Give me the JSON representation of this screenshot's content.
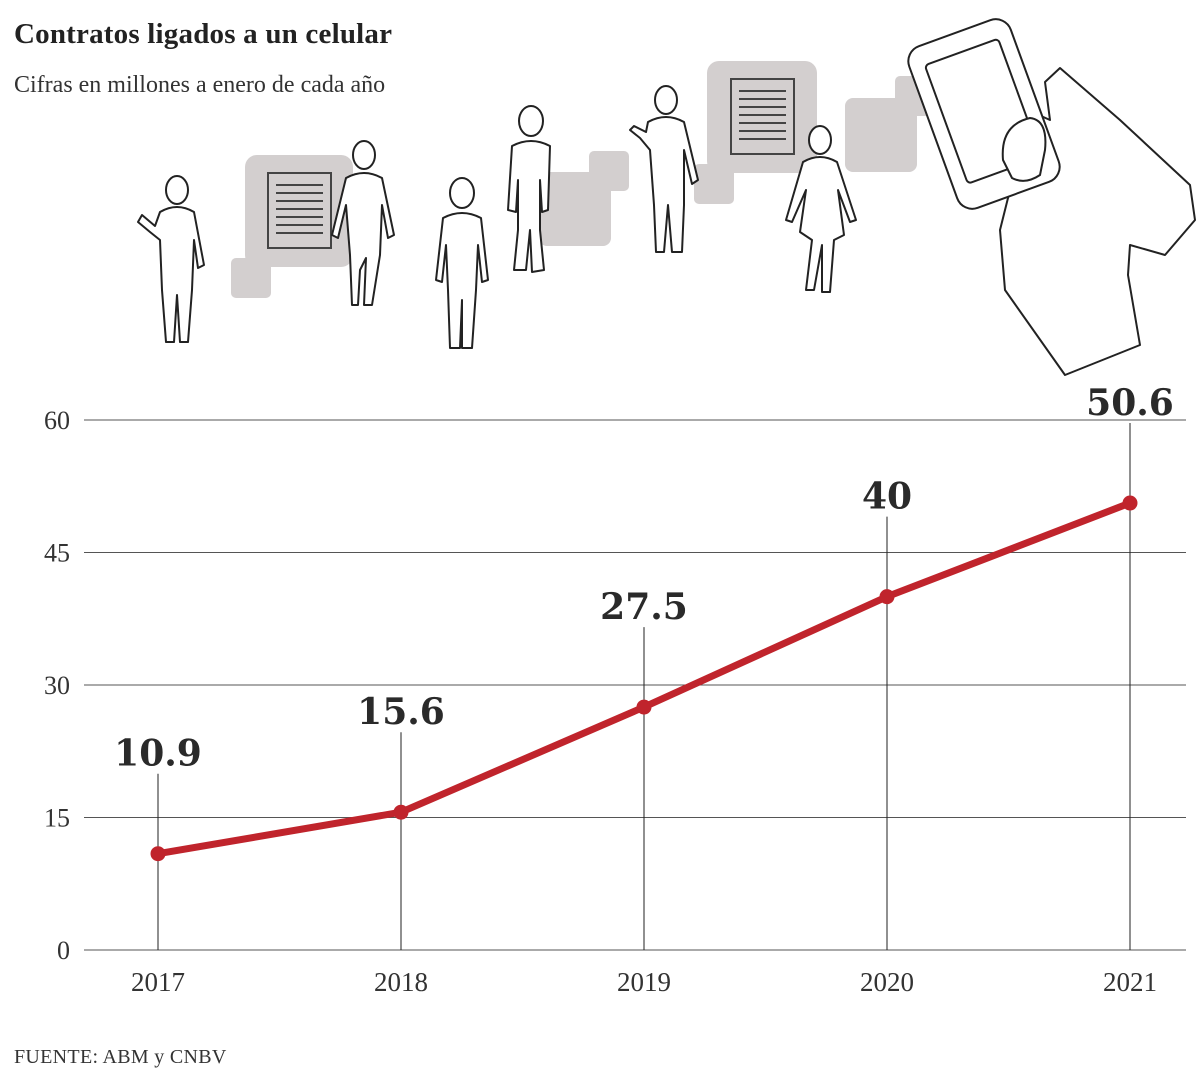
{
  "header": {
    "title": "Contratos ligados a un celular",
    "subtitle": "Cifras en millones a enero de cada año"
  },
  "footer": {
    "source": "FUENTE: ABM y CNBV"
  },
  "illustration": {
    "icons": [
      "person-silhouette-icon",
      "document-card-icon",
      "smartphone-hand-icon"
    ]
  },
  "colors": {
    "line": "#c0242c",
    "grid": "#555555",
    "card": "#d3cfcf"
  },
  "chart_data": {
    "type": "line",
    "title": "Contratos ligados a un celular",
    "subtitle": "Cifras en millones a enero de cada año",
    "categories": [
      "2017",
      "2018",
      "2019",
      "2020",
      "2021"
    ],
    "values": [
      10.9,
      15.6,
      27.5,
      40,
      50.6
    ],
    "value_labels": [
      "10.9",
      "15.6",
      "27.5",
      "40",
      "50.6"
    ],
    "y_ticks": [
      0,
      15,
      30,
      45,
      60
    ],
    "ylim": [
      0,
      60
    ],
    "xlabel": "",
    "ylabel": "",
    "grid": true,
    "legend": "none"
  }
}
